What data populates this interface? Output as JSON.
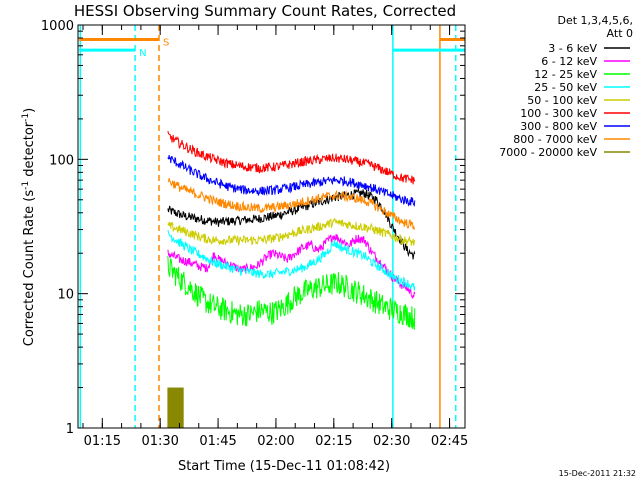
{
  "chart_data": {
    "type": "line",
    "title": "HESSI Observing Summary Count Rates, Corrected",
    "xlabel": "Start Time (15-Dec-11 01:08:42)",
    "ylabel_main": "Corrected Count Rate (s",
    "ylabel_sup1": "-1",
    "ylabel_mid": " detector",
    "ylabel_sup2": "-1",
    "ylabel_end": ")",
    "yscale": "log",
    "ylim": [
      1,
      1000
    ],
    "xlim_min": [
      68.7,
      169
    ],
    "x_ticks": [
      {
        "min": 75,
        "label": "01:15"
      },
      {
        "min": 90,
        "label": "01:30"
      },
      {
        "min": 105,
        "label": "01:45"
      },
      {
        "min": 120,
        "label": "02:00"
      },
      {
        "min": 135,
        "label": "02:15"
      },
      {
        "min": 150,
        "label": "02:30"
      },
      {
        "min": 165,
        "label": "02:45"
      }
    ],
    "y_ticks": [
      {
        "value": 1,
        "label": "1"
      },
      {
        "value": 10,
        "label": "10"
      },
      {
        "value": 100,
        "label": "100"
      },
      {
        "value": 1000,
        "label": "1000"
      }
    ],
    "legend_header": [
      "Det 1,3,4,5,6,",
      "Att 0"
    ],
    "series": [
      {
        "name": "3 - 6 keV",
        "color": "#000000",
        "points": [
          [
            92,
            42
          ],
          [
            96,
            38
          ],
          [
            100,
            36
          ],
          [
            105,
            34
          ],
          [
            110,
            35
          ],
          [
            115,
            36
          ],
          [
            120,
            38
          ],
          [
            125,
            42
          ],
          [
            130,
            47
          ],
          [
            135,
            52
          ],
          [
            140,
            55
          ],
          [
            143,
            56
          ],
          [
            146,
            50
          ],
          [
            148,
            42
          ],
          [
            150,
            32
          ],
          [
            152,
            26
          ],
          [
            154,
            21
          ],
          [
            156,
            19
          ]
        ]
      },
      {
        "name": "6 - 12 keV",
        "color": "#ff00ff",
        "points": [
          [
            92,
            20
          ],
          [
            95,
            18
          ],
          [
            98,
            17
          ],
          [
            100,
            16
          ],
          [
            102,
            15.5
          ],
          [
            103,
            17
          ],
          [
            104,
            20
          ],
          [
            105,
            18
          ],
          [
            107,
            17
          ],
          [
            109,
            16
          ],
          [
            111,
            15
          ],
          [
            113,
            15.5
          ],
          [
            115,
            16
          ],
          [
            117,
            18
          ],
          [
            119,
            20
          ],
          [
            121,
            19
          ],
          [
            123,
            18
          ],
          [
            125,
            20
          ],
          [
            127,
            22
          ],
          [
            129,
            23
          ],
          [
            131,
            21
          ],
          [
            133,
            24
          ],
          [
            135,
            27
          ],
          [
            137,
            25
          ],
          [
            139,
            23
          ],
          [
            141,
            26
          ],
          [
            143,
            25
          ],
          [
            145,
            20
          ],
          [
            148,
            16
          ],
          [
            150,
            13.5
          ],
          [
            152,
            12
          ],
          [
            154,
            11
          ],
          [
            156,
            9.5
          ]
        ]
      },
      {
        "name": "12 - 25 keV",
        "color": "#00ff00",
        "points": [
          [
            92,
            16
          ],
          [
            95,
            13
          ],
          [
            98,
            11
          ],
          [
            101,
            9
          ],
          [
            104,
            8
          ],
          [
            107,
            7.5
          ],
          [
            110,
            7
          ],
          [
            113,
            7
          ],
          [
            116,
            7.5
          ],
          [
            119,
            7.2
          ],
          [
            121,
            7.6
          ],
          [
            123,
            8.5
          ],
          [
            125,
            9.5
          ],
          [
            128,
            10.5
          ],
          [
            130,
            11
          ],
          [
            133,
            11.5
          ],
          [
            136,
            12
          ],
          [
            139,
            11
          ],
          [
            142,
            10
          ],
          [
            145,
            9
          ],
          [
            148,
            8
          ],
          [
            151,
            7.5
          ],
          [
            154,
            7
          ],
          [
            156,
            6.5
          ]
        ]
      },
      {
        "name": "25 - 50 keV",
        "color": "#00ffff",
        "points": [
          [
            92,
            28
          ],
          [
            95,
            24
          ],
          [
            98,
            21
          ],
          [
            101,
            19
          ],
          [
            104,
            17
          ],
          [
            107,
            16
          ],
          [
            110,
            15
          ],
          [
            113,
            14.5
          ],
          [
            116,
            14
          ],
          [
            119,
            14
          ],
          [
            122,
            14.5
          ],
          [
            125,
            15
          ],
          [
            128,
            16
          ],
          [
            131,
            18
          ],
          [
            133,
            20
          ],
          [
            135,
            24
          ],
          [
            137,
            22
          ],
          [
            139,
            21
          ],
          [
            141,
            20
          ],
          [
            143,
            19
          ],
          [
            145,
            17
          ],
          [
            148,
            15
          ],
          [
            151,
            13
          ],
          [
            154,
            12
          ],
          [
            156,
            11
          ]
        ]
      },
      {
        "name": "50 - 100 keV",
        "color": "#cccc00",
        "points": [
          [
            92,
            32
          ],
          [
            95,
            30
          ],
          [
            98,
            28
          ],
          [
            101,
            26
          ],
          [
            104,
            25
          ],
          [
            108,
            25
          ],
          [
            112,
            25
          ],
          [
            116,
            25
          ],
          [
            120,
            26
          ],
          [
            124,
            28
          ],
          [
            128,
            30
          ],
          [
            132,
            32
          ],
          [
            135,
            34
          ],
          [
            138,
            33
          ],
          [
            141,
            32
          ],
          [
            144,
            31
          ],
          [
            147,
            29
          ],
          [
            150,
            27
          ],
          [
            153,
            25
          ],
          [
            156,
            24
          ]
        ]
      },
      {
        "name": "100 - 300 keV",
        "color": "#ff0000",
        "points": [
          [
            92,
            150
          ],
          [
            95,
            132
          ],
          [
            98,
            118
          ],
          [
            101,
            108
          ],
          [
            104,
            100
          ],
          [
            108,
            92
          ],
          [
            112,
            88
          ],
          [
            116,
            86
          ],
          [
            120,
            88
          ],
          [
            124,
            92
          ],
          [
            128,
            97
          ],
          [
            132,
            100
          ],
          [
            135,
            102
          ],
          [
            138,
            100
          ],
          [
            141,
            96
          ],
          [
            144,
            92
          ],
          [
            147,
            85
          ],
          [
            150,
            78
          ],
          [
            153,
            72
          ],
          [
            156,
            70
          ]
        ]
      },
      {
        "name": "300 - 800 keV",
        "color": "#0000ff",
        "points": [
          [
            92,
            103
          ],
          [
            95,
            92
          ],
          [
            98,
            82
          ],
          [
            101,
            74
          ],
          [
            104,
            68
          ],
          [
            108,
            62
          ],
          [
            112,
            59
          ],
          [
            116,
            58
          ],
          [
            120,
            59
          ],
          [
            124,
            62
          ],
          [
            128,
            65
          ],
          [
            132,
            68
          ],
          [
            135,
            70
          ],
          [
            138,
            69
          ],
          [
            141,
            66
          ],
          [
            144,
            63
          ],
          [
            147,
            58
          ],
          [
            150,
            54
          ],
          [
            153,
            50
          ],
          [
            156,
            48
          ]
        ]
      },
      {
        "name": "800 - 7000 keV",
        "color": "#ff8800",
        "points": [
          [
            92,
            70
          ],
          [
            95,
            62
          ],
          [
            98,
            57
          ],
          [
            101,
            53
          ],
          [
            104,
            49
          ],
          [
            108,
            46
          ],
          [
            112,
            44
          ],
          [
            116,
            43
          ],
          [
            120,
            44
          ],
          [
            124,
            46
          ],
          [
            128,
            49
          ],
          [
            132,
            52
          ],
          [
            135,
            54
          ],
          [
            138,
            53
          ],
          [
            141,
            51
          ],
          [
            144,
            48
          ],
          [
            147,
            43
          ],
          [
            150,
            38
          ],
          [
            153,
            34
          ],
          [
            156,
            32
          ]
        ]
      },
      {
        "name": "7000 - 20000 keV",
        "color": "#888800",
        "points": [
          [
            92,
            2.0
          ],
          [
            96,
            2.0
          ]
        ]
      }
    ],
    "vertical_markers": [
      {
        "min": 69.3,
        "color": "#00ffff",
        "style": "solid"
      },
      {
        "min": 83.5,
        "color": "#00ffff",
        "style": "dashed"
      },
      {
        "min": 89.7,
        "color": "#ff8800",
        "style": "dashed"
      },
      {
        "min": 150.3,
        "color": "#00ffff",
        "style": "solid"
      },
      {
        "min": 162.5,
        "color": "#ff8800",
        "style": "solid"
      },
      {
        "min": 166.6,
        "color": "#00ffff",
        "style": "dashed"
      }
    ],
    "bands": [
      {
        "label": "S",
        "color": "#ff8800",
        "value": 780,
        "ranges": [
          [
            69,
            89.7
          ],
          [
            162.5,
            169
          ]
        ]
      },
      {
        "label": "N",
        "color": "#00ffff",
        "value": 650,
        "ranges": [
          [
            69,
            83.5
          ],
          [
            150.3,
            169
          ]
        ]
      }
    ],
    "footer_timestamp": "15-Dec-2011 21:32"
  }
}
